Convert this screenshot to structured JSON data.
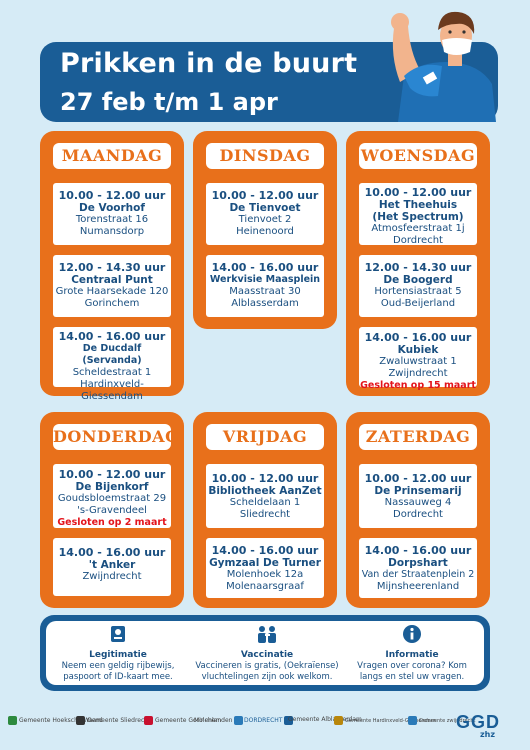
{
  "title": {
    "line1": "Prikken in de buurt",
    "line2": "27 feb t/m 1 apr"
  },
  "days": [
    {
      "name": "MAANDAG",
      "slots": [
        {
          "time": "10.00 - 12.00 uur",
          "place": "De Voorhof",
          "lines": [
            "Torenstraat 16",
            "Numansdorp"
          ],
          "note": ""
        },
        {
          "time": "12.00 - 14.30 uur",
          "place": "Centraal Punt",
          "lines": [
            "Grote Haarsekade 120",
            "Gorinchem"
          ],
          "note": ""
        },
        {
          "time": "14.00 - 16.00 uur",
          "place": "De Ducdalf (Servanda)",
          "lines": [
            "Scheldestraat 1",
            "Hardinxveld-",
            "Giessendam"
          ],
          "note": ""
        }
      ]
    },
    {
      "name": "DINSDAG",
      "slots": [
        {
          "time": "10.00 - 12.00 uur",
          "place": "De Tienvoet",
          "lines": [
            "Tienvoet 2",
            "Heinenoord"
          ],
          "note": ""
        },
        {
          "time": "14.00 - 16.00 uur",
          "place": "Werkvisie Maasplein",
          "lines": [
            "Maasstraat 30",
            "Alblasserdam"
          ],
          "note": ""
        }
      ]
    },
    {
      "name": "WOENSDAG",
      "slots": [
        {
          "time": "10.00 - 12.00 uur",
          "place": "Het Theehuis",
          "place2": "(Het Spectrum)",
          "lines": [
            "Atmosfeerstraat 1j",
            "Dordrecht"
          ],
          "note": ""
        },
        {
          "time": "12.00 - 14.30 uur",
          "place": "De Boogerd",
          "lines": [
            "Hortensiastraat 5",
            "Oud-Beijerland"
          ],
          "note": ""
        },
        {
          "time": "14.00 - 16.00 uur",
          "place": "Kubiek",
          "lines": [
            "Zwaluwstraat 1",
            "Zwijndrecht"
          ],
          "note": "Gesloten op 15 maart"
        }
      ]
    },
    {
      "name": "DONDERDAG",
      "slots": [
        {
          "time": "10.00 - 12.00 uur",
          "place": "De Bijenkorf",
          "lines": [
            "Goudsbloemstraat 29",
            "'s-Gravendeel"
          ],
          "note": "Gesloten op 2 maart"
        },
        {
          "time": "14.00 - 16.00 uur",
          "place": "'t Anker",
          "lines": [
            "Zwijndrecht"
          ],
          "note": ""
        }
      ]
    },
    {
      "name": "VRIJDAG",
      "slots": [
        {
          "time": "10.00 - 12.00 uur",
          "place": "Bibliotheek AanZet",
          "lines": [
            "Scheldelaan 1",
            "Sliedrecht"
          ],
          "note": ""
        },
        {
          "time": "14.00 - 16.00 uur",
          "place": "Gymzaal De Turner",
          "lines": [
            "Molenhoek 12a",
            "Molenaarsgraaf"
          ],
          "note": ""
        }
      ]
    },
    {
      "name": "ZATERDAG",
      "slots": [
        {
          "time": "10.00 - 12.00 uur",
          "place": "De Prinsemarij",
          "lines": [
            "Nassauweg 4",
            "Dordrecht"
          ],
          "note": ""
        },
        {
          "time": "14.00 - 16.00 uur",
          "place": "Dorpshart",
          "lines": [
            "Van der Straatenplein 2",
            "Mijnsheerenland"
          ],
          "note": ""
        }
      ]
    }
  ],
  "info": [
    {
      "icon": "id-card-icon",
      "heading": "Legitimatie",
      "body": [
        "Neem een geldig rijbewijs,",
        "paspoort of ID-kaart mee."
      ]
    },
    {
      "icon": "vaccination-icon",
      "heading": "Vaccinatie",
      "body": [
        "Vaccineren is gratis, (Oekraïense)",
        "vluchtelingen zijn ook welkom."
      ]
    },
    {
      "icon": "info-icon",
      "heading": "Informatie",
      "body": [
        "Vragen over corona? Kom",
        "langs en stel uw vragen."
      ]
    }
  ],
  "logos": [
    {
      "name": "Hoeksche Waard",
      "label": "Gemeente Hoeksche Waard",
      "color": "#2d8a3e"
    },
    {
      "name": "Sliedrecht",
      "label": "Gemeente Sliedrecht",
      "color": "#333333"
    },
    {
      "name": "Gorinchem",
      "label": "Gemeente Gorinchem",
      "color": "#c8102e"
    },
    {
      "name": "Molenlanden",
      "label": "Molenlanden",
      "color": "#2a7ab8"
    },
    {
      "name": "Dordrecht",
      "label": "DORDRECHT",
      "color": "#1a5d96"
    },
    {
      "name": "Alblasserdam",
      "label": "Gemeente Alblasserdam",
      "color": "#c8102e"
    },
    {
      "name": "Hardinxveld-Giessendam",
      "label": "Gemeente Hardinxveld-Giessendam",
      "color": "#b8860b"
    },
    {
      "name": "Zwijndrecht",
      "label": "Gemeente zwijndrecht",
      "color": "#2a7ab8"
    }
  ],
  "brand": {
    "ggd": "GGD",
    "sub": "zhz"
  },
  "colors": {
    "orange": "#e8701b",
    "blue": "#1a5d96",
    "background": "#d6ebf6",
    "red": "#e3141c"
  }
}
